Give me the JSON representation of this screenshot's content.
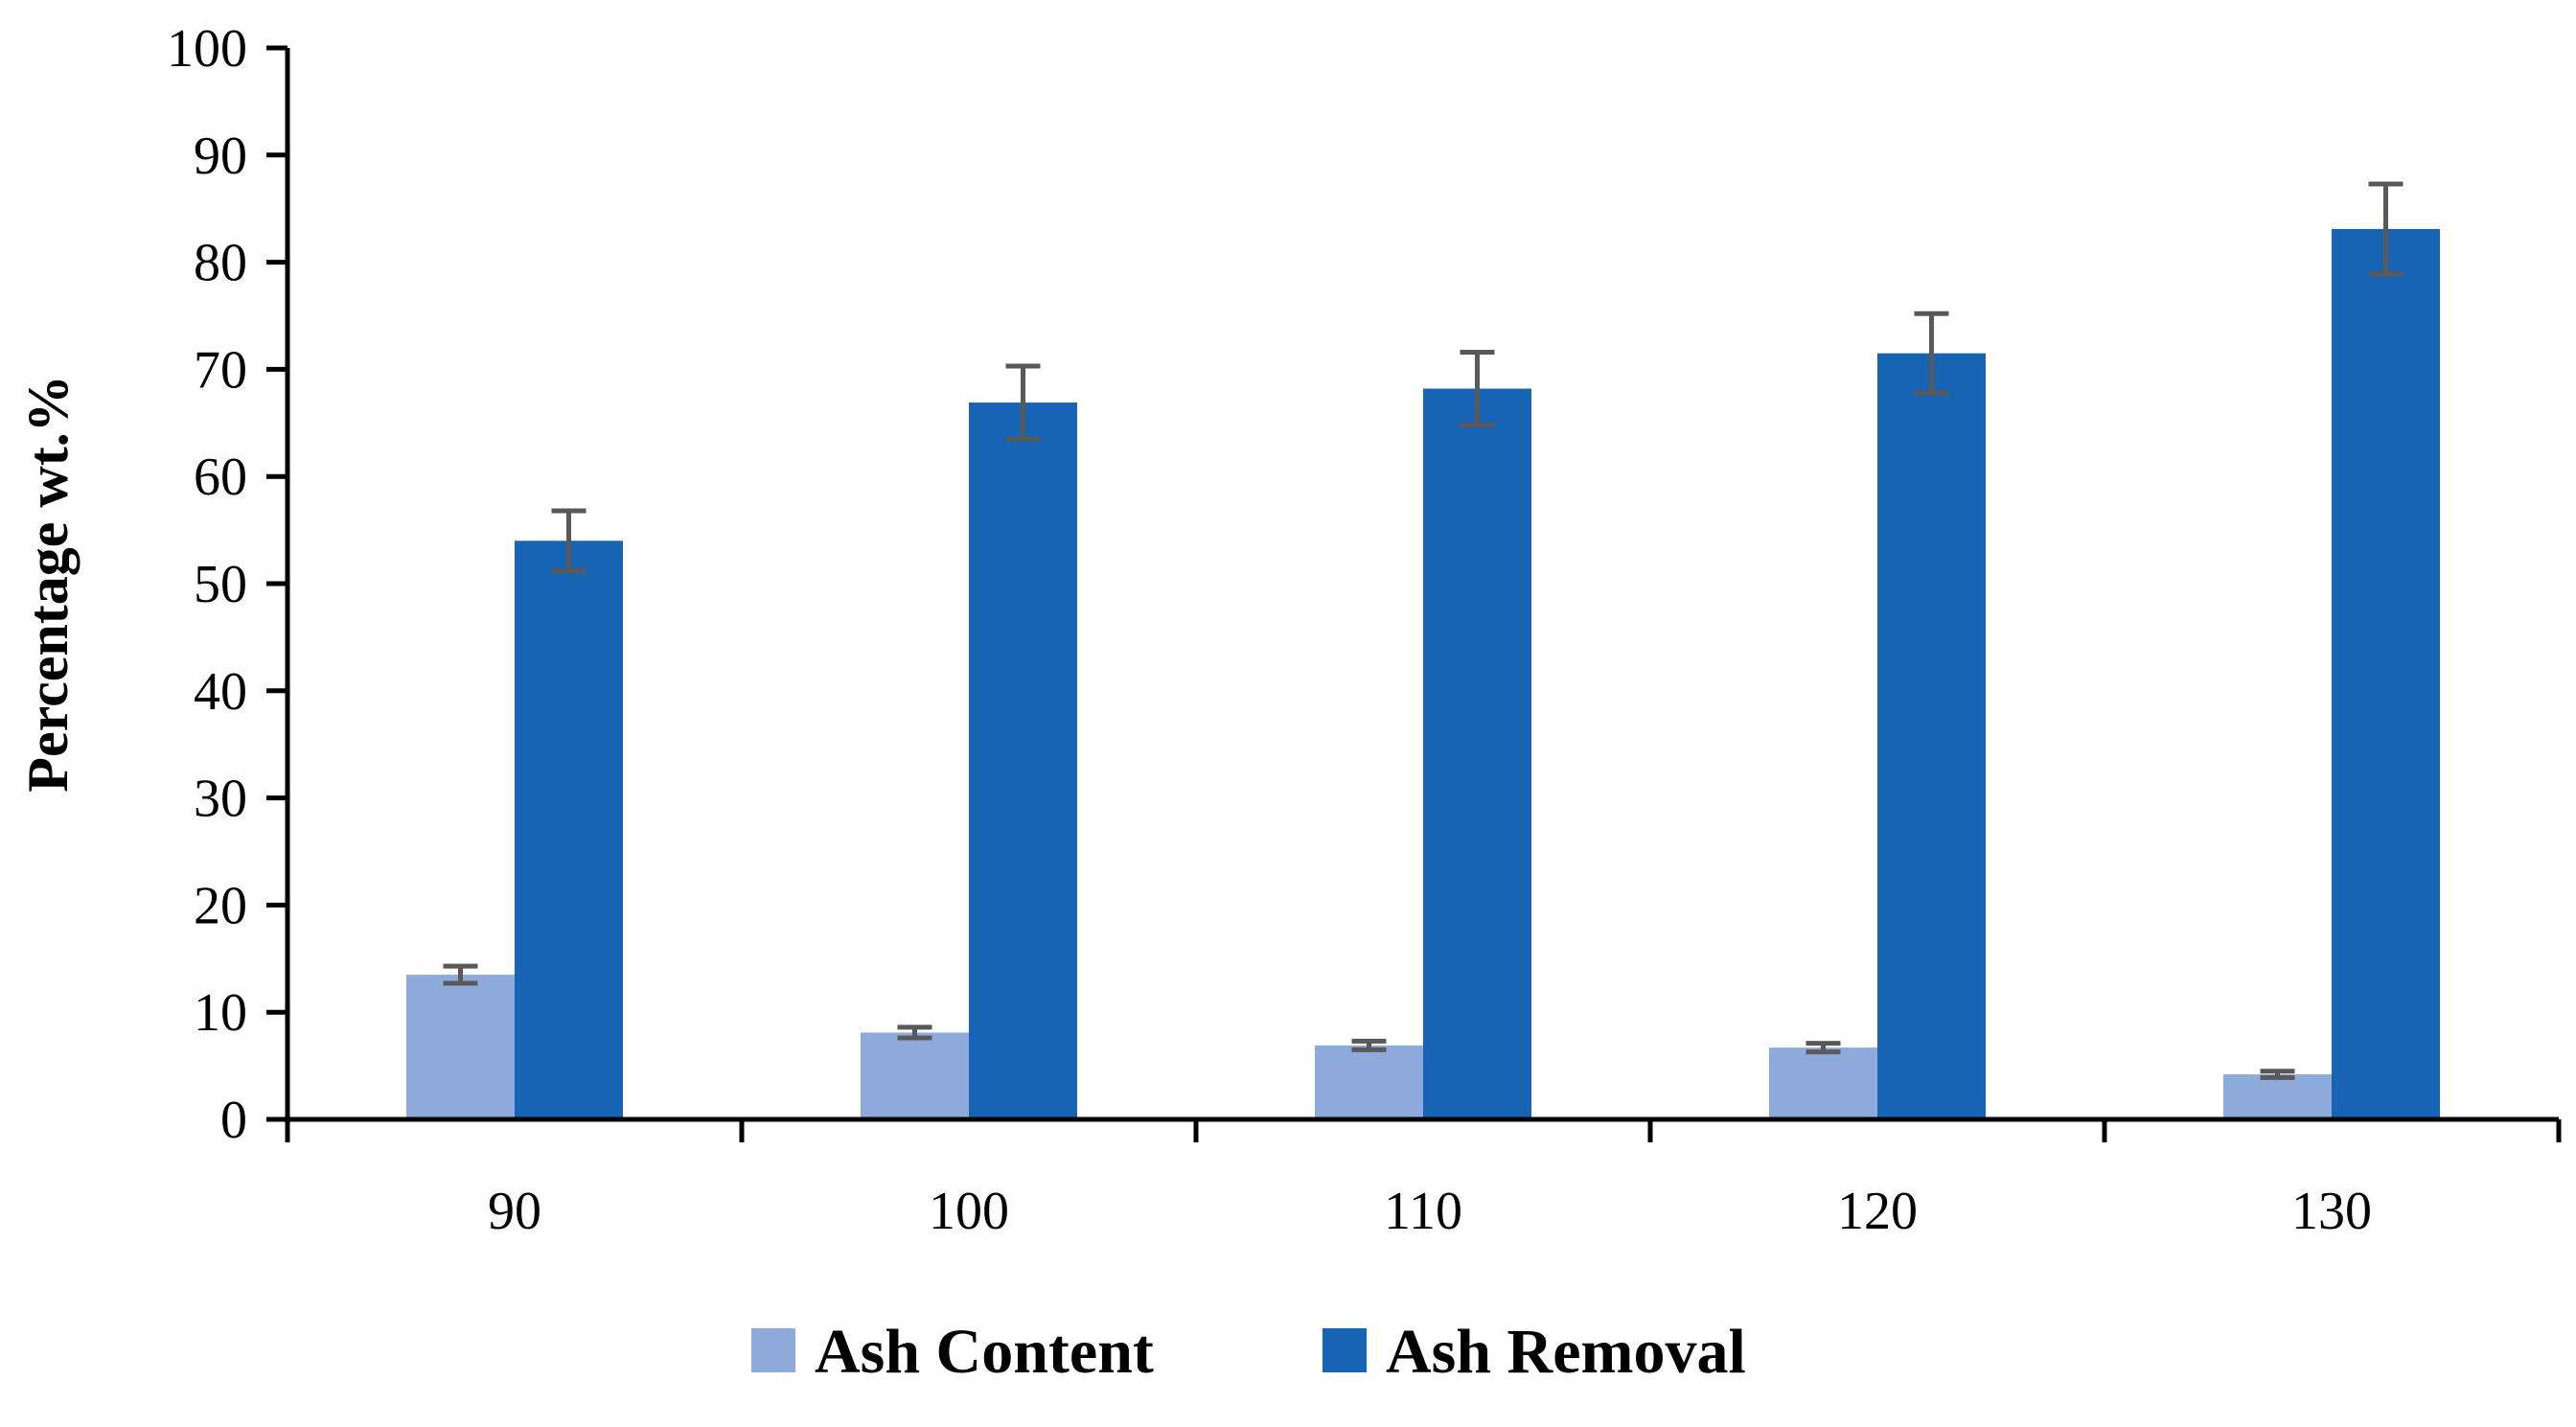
{
  "chart_data": {
    "type": "bar",
    "title": "",
    "xlabel": "",
    "ylabel": "Percentage wt.%",
    "ylim": [
      0,
      100
    ],
    "yticks": [
      0,
      10,
      20,
      30,
      40,
      50,
      60,
      70,
      80,
      90,
      100
    ],
    "categories": [
      "90",
      "100",
      "110",
      "120",
      "130"
    ],
    "series": [
      {
        "name": "Ash Content",
        "color": "#8eaadb",
        "values": [
          13.5,
          8.1,
          6.9,
          6.7,
          4.2
        ],
        "errors": [
          0.8,
          0.5,
          0.4,
          0.4,
          0.3
        ]
      },
      {
        "name": "Ash Removal",
        "color": "#1764b4",
        "values": [
          54.0,
          66.9,
          68.2,
          71.5,
          83.1
        ],
        "errors": [
          2.8,
          3.4,
          3.4,
          3.7,
          4.2
        ]
      }
    ],
    "error_bar_color": "#595959",
    "axis_color": "#000000",
    "grid": false,
    "legend": "bottom"
  }
}
